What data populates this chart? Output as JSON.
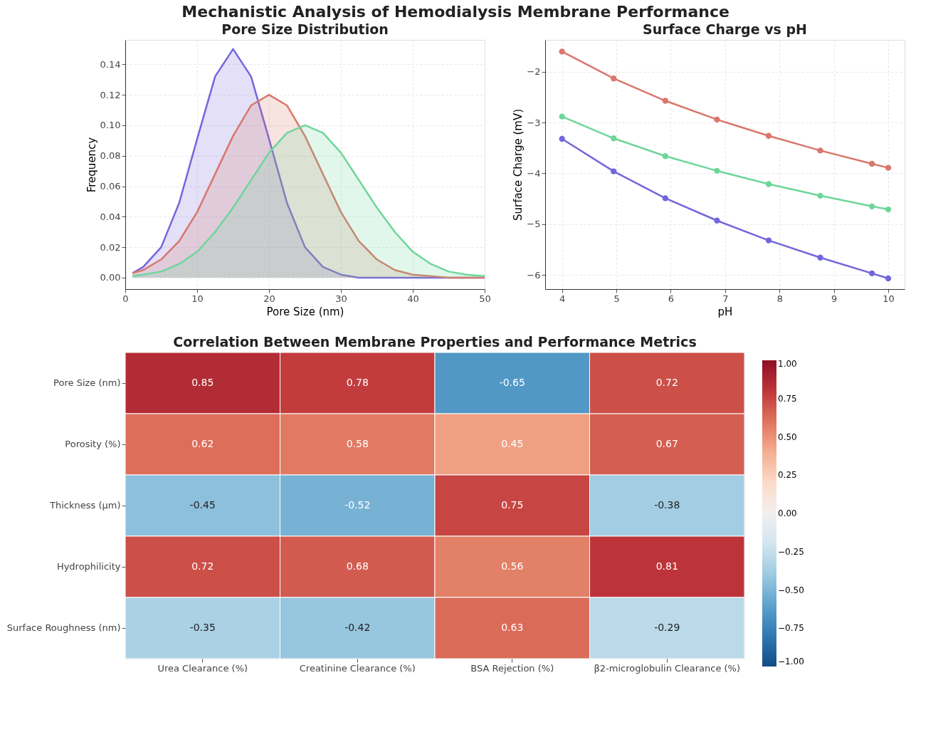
{
  "chart_data": [
    {
      "type": "area",
      "title": "Pore Size Distribution",
      "xlabel": "Pore Size (nm)",
      "ylabel": "Frequency",
      "annotations": [
        "Mechanistic Analysis of Hemodialysis Membrane Performance"
      ],
      "x": [
        1,
        2.5,
        5,
        7.5,
        10,
        12.5,
        15,
        17.5,
        20,
        22.5,
        25,
        27.5,
        30,
        32.5,
        35,
        37.5,
        40,
        42.5,
        45,
        47.5,
        50
      ],
      "series": [
        {
          "color": "#7366dd",
          "values": [
            0.003,
            0.007,
            0.02,
            0.049,
            0.091,
            0.132,
            0.15,
            0.132,
            0.091,
            0.049,
            0.02,
            0.007,
            0.002,
            0.0,
            0,
            0,
            0,
            0,
            0,
            0,
            0
          ]
        },
        {
          "color": "#d9776b",
          "values": [
            0.003,
            0.005,
            0.012,
            0.024,
            0.043,
            0.068,
            0.093,
            0.113,
            0.12,
            0.113,
            0.093,
            0.068,
            0.043,
            0.024,
            0.012,
            0.005,
            0.002,
            0.001,
            0.0,
            0.0,
            0.0
          ]
        },
        {
          "color": "#6fd69b",
          "values": [
            0.001,
            0.002,
            0.004,
            0.009,
            0.017,
            0.03,
            0.046,
            0.064,
            0.082,
            0.095,
            0.1,
            0.095,
            0.082,
            0.064,
            0.046,
            0.03,
            0.017,
            0.009,
            0.004,
            0.002,
            0.001
          ]
        }
      ],
      "xlim": [
        0,
        50
      ],
      "xticks": [
        0,
        10,
        20,
        30,
        40,
        50
      ],
      "ylim": [
        -0.0075,
        0.156
      ],
      "yticks": [
        {
          "value": 0,
          "label": "0.00"
        },
        {
          "value": 0.02,
          "label": "0.02"
        },
        {
          "value": 0.04,
          "label": "0.04"
        },
        {
          "value": 0.06,
          "label": "0.06"
        },
        {
          "value": 0.08,
          "label": "0.08"
        },
        {
          "value": 0.1,
          "label": "0.10"
        },
        {
          "value": 0.12,
          "label": "0.12"
        },
        {
          "value": 0.14,
          "label": "0.14"
        }
      ],
      "grid": true
    },
    {
      "type": "line",
      "title": "Surface Charge vs pH",
      "xlabel": "pH",
      "ylabel": "Surface Charge (mV)",
      "line_style": "solid",
      "series": [
        {
          "type": "line",
          "color": "#d9776b",
          "x": [
            4,
            4.95,
            5.9,
            6.85,
            7.8,
            8.75,
            9.7,
            10
          ],
          "values": [
            -1.6,
            -2.13,
            -2.57,
            -2.94,
            -3.26,
            -3.55,
            -3.81,
            -3.89
          ]
        },
        {
          "type": "line",
          "color": "#6fd69b",
          "x": [
            4,
            4.95,
            5.9,
            6.85,
            7.8,
            8.75,
            9.7,
            10
          ],
          "values": [
            -2.88,
            -3.31,
            -3.66,
            -3.95,
            -4.21,
            -4.44,
            -4.65,
            -4.71
          ]
        },
        {
          "type": "line",
          "color": "#7366dd",
          "x": [
            4,
            4.95,
            5.9,
            6.85,
            7.8,
            8.75,
            9.7,
            10
          ],
          "values": [
            -3.32,
            -3.96,
            -4.49,
            -4.93,
            -5.32,
            -5.66,
            -5.97,
            -6.07
          ]
        }
      ],
      "marker": "circle",
      "xlim": [
        3.69,
        10.3
      ],
      "xticks": [
        4,
        5,
        6,
        7,
        8,
        9,
        10
      ],
      "ylim": [
        -6.28,
        -1.37
      ],
      "yticks": [
        {
          "value": -6,
          "label": "−6"
        },
        {
          "value": -5,
          "label": "−5"
        },
        {
          "value": -4,
          "label": "−4"
        },
        {
          "value": -3,
          "label": "−3"
        },
        {
          "value": -2,
          "label": "−2"
        }
      ],
      "grid": true
    },
    {
      "type": "heatmap",
      "title": "Correlation Between Membrane Properties and Performance Metrics",
      "categories": [
        "Urea Clearance (%)",
        "Creatinine Clearance (%)",
        "BSA Rejection (%)",
        "β2-microglobulin Clearance (%)"
      ],
      "y_categories": [
        "Pore Size (nm)",
        "Porosity (%)",
        "Thickness (μm)",
        "Hydrophilicity",
        "Surface Roughness (nm)"
      ],
      "cells": [
        [
          0.85,
          0.78,
          -0.65,
          0.72
        ],
        [
          0.62,
          0.58,
          0.45,
          0.67
        ],
        [
          -0.45,
          -0.52,
          0.75,
          -0.38
        ],
        [
          0.72,
          0.68,
          0.56,
          0.81
        ],
        [
          -0.35,
          -0.42,
          0.63,
          -0.29
        ]
      ],
      "data_labels": true,
      "clim": [
        -1,
        1
      ],
      "cticks": [
        {
          "value": -1,
          "label": "−1.00"
        },
        {
          "value": -0.75,
          "label": "−0.75"
        },
        {
          "value": -0.5,
          "label": "−0.50"
        },
        {
          "value": -0.25,
          "label": "−0.25"
        },
        {
          "value": 0,
          "label": "0.00"
        },
        {
          "value": 0.25,
          "label": "0.25"
        },
        {
          "value": 0.5,
          "label": "0.50"
        },
        {
          "value": 0.75,
          "label": "0.75"
        },
        {
          "value": 1,
          "label": "1.00"
        }
      ]
    }
  ]
}
